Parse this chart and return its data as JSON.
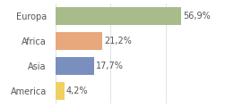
{
  "categories": [
    "Europa",
    "Africa",
    "Asia",
    "America"
  ],
  "values": [
    56.9,
    21.2,
    17.7,
    4.2
  ],
  "labels": [
    "56,9%",
    "21,2%",
    "17,7%",
    "4,2%"
  ],
  "bar_colors": [
    "#a8bb8a",
    "#e8a87c",
    "#7b8fbf",
    "#f0d060"
  ],
  "background_color": "#ffffff",
  "xlim": [
    0,
    75
  ],
  "label_fontsize": 7,
  "tick_fontsize": 7,
  "grid_color": "#dddddd",
  "grid_xticks": [
    0,
    25,
    50,
    75
  ]
}
